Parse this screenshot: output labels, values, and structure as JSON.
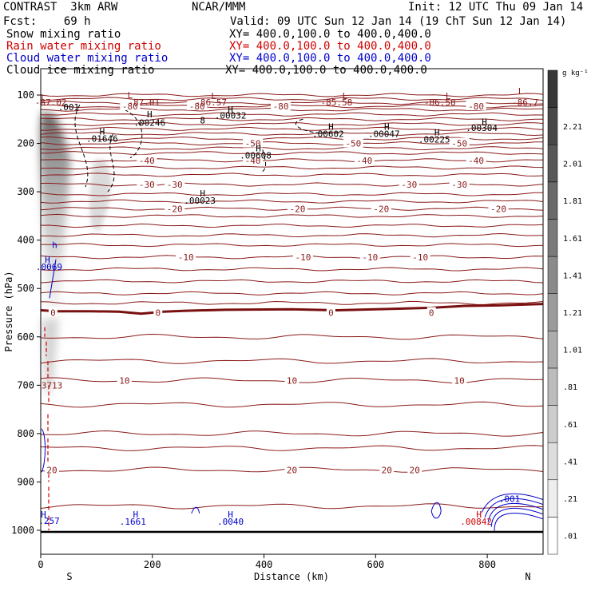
{
  "header": {
    "model": "CONTRAST  3km ARW",
    "center": "NCAR/MMM",
    "init": "Init: 12 UTC Thu 09 Jan 14",
    "fcst": "Fcst:    69 h",
    "valid": "Valid: 09 UTC Sun 12 Jan 14 (19 ChT Sun 12 Jan 14)",
    "fields": [
      {
        "name": "Snow mixing ratio",
        "xy": "XY= 400.0,100.0 to 400.0,400.0",
        "color": "#000000"
      },
      {
        "name": "Rain water mixing ratio",
        "xy": "XY= 400.0,100.0 to 400.0,400.0",
        "color": "#d00000"
      },
      {
        "name": "Cloud water mixing ratio",
        "xy": "XY= 400.0,100.0 to 400.0,400.0",
        "color": "#0000cc"
      },
      {
        "name": "Cloud ice mixing ratio",
        "xy": "XY= 400.0,100.0 to 400.0,400.0",
        "color": "#000000"
      }
    ]
  },
  "chart_data": {
    "type": "cross-section",
    "xlabel": "Distance (km)",
    "ylabel": "Pressure (hPa)",
    "xlim": [
      0,
      900
    ],
    "ylim": [
      1000,
      60
    ],
    "xticks": [
      0,
      200,
      400,
      600,
      800
    ],
    "yticks": [
      100,
      200,
      300,
      400,
      500,
      600,
      700,
      800,
      900,
      1000
    ],
    "x_end_labels": [
      "S",
      "N"
    ],
    "colorbar": {
      "unit": "g kg⁻¹",
      "levels": [
        ".01",
        ".21",
        ".41",
        ".61",
        ".81",
        "1.01",
        "1.21",
        "1.41",
        "1.61",
        "1.81",
        "2.01",
        "2.21"
      ]
    },
    "temperature_contours": [
      {
        "value": -80,
        "p": 123,
        "labels": [
          {
            "text": "-80",
            "x": 160
          },
          {
            "text": "-80",
            "x": 280
          },
          {
            "text": "-80",
            "x": 430
          },
          {
            "text": "-80",
            "x": 780
          }
        ]
      },
      {
        "value": -50,
        "p": 200,
        "labels": [
          {
            "text": "-50",
            "x": 380
          },
          {
            "text": "-50",
            "x": 560
          },
          {
            "text": "-50",
            "x": 750
          }
        ]
      },
      {
        "value": -40,
        "p": 235,
        "labels": [
          {
            "text": "-40",
            "x": 190
          },
          {
            "text": "-40",
            "x": 380
          },
          {
            "text": "-40",
            "x": 580
          },
          {
            "text": "-40",
            "x": 780
          }
        ]
      },
      {
        "value": -30,
        "p": 285,
        "labels": [
          {
            "text": "-30",
            "x": 190
          },
          {
            "text": "-30",
            "x": 240
          },
          {
            "text": "-30",
            "x": 660
          },
          {
            "text": "-30",
            "x": 750
          }
        ]
      },
      {
        "value": -20,
        "p": 335,
        "labels": [
          {
            "text": "-20",
            "x": 240
          },
          {
            "text": "-20",
            "x": 460
          },
          {
            "text": "-20",
            "x": 610
          },
          {
            "text": "-20",
            "x": 820
          }
        ]
      },
      {
        "value": -10,
        "p": 435,
        "labels": [
          {
            "text": "-10",
            "x": 260
          },
          {
            "text": "-10",
            "x": 470
          },
          {
            "text": "-10",
            "x": 590
          },
          {
            "text": "-10",
            "x": 680
          }
        ]
      },
      {
        "value": 0,
        "p": 550,
        "labels": [
          {
            "text": "0",
            "x": 22
          },
          {
            "text": "0",
            "x": 210
          },
          {
            "text": "0",
            "x": 520
          },
          {
            "text": "0",
            "x": 700
          }
        ]
      },
      {
        "value": 10,
        "p": 690,
        "labels": [
          {
            "text": "10",
            "x": 150
          },
          {
            "text": "10",
            "x": 450
          },
          {
            "text": "10",
            "x": 750
          }
        ]
      },
      {
        "value": 20,
        "p": 875,
        "labels": [
          {
            "text": "20",
            "x": 20
          },
          {
            "text": "20",
            "x": 450
          },
          {
            "text": "20",
            "x": 620
          },
          {
            "text": "20",
            "x": 670
          }
        ]
      }
    ],
    "contour_extra_labels": [
      {
        "text": "-87.02",
        "x": 18,
        "p": 115
      },
      {
        "text": "-87.01",
        "x": 185,
        "p": 115
      },
      {
        "text": "-86.57",
        "x": 305,
        "p": 115
      },
      {
        "text": "-85.58",
        "x": 530,
        "p": 115
      },
      {
        "text": "-86.58",
        "x": 715,
        "p": 115
      },
      {
        "text": "-86.7",
        "x": 868,
        "p": 115
      },
      {
        "text": ".001",
        "x": 50,
        "p": 125
      },
      {
        "text": ".00246",
        "x": 195,
        "p": 157
      },
      {
        "text": ".00032",
        "x": 340,
        "p": 142
      },
      {
        "text": ".01646",
        "x": 110,
        "p": 190
      },
      {
        "text": ".00602",
        "x": 515,
        "p": 180
      },
      {
        "text": ".00047",
        "x": 615,
        "p": 180
      },
      {
        "text": ".00225",
        "x": 705,
        "p": 192
      },
      {
        "text": ".00304",
        "x": 790,
        "p": 168
      },
      {
        "text": ".00608",
        "x": 385,
        "p": 225
      },
      {
        "text": ".00023",
        "x": 285,
        "p": 318
      },
      {
        "text": "8",
        "x": 290,
        "p": 152
      },
      {
        "text": "3713",
        "x": 20,
        "p": 700
      }
    ],
    "blue_labels": [
      {
        "text": ".0069",
        "x": 15,
        "p": 455
      },
      {
        "text": ".257",
        "x": 15,
        "p": 980
      },
      {
        "text": ".1661",
        "x": 165,
        "p": 982
      },
      {
        "text": ".0040",
        "x": 340,
        "p": 982
      },
      {
        "text": ".001",
        "x": 840,
        "p": 935
      },
      {
        "text": ".00842",
        "x": 780,
        "p": 982
      }
    ],
    "hl_markers": [
      {
        "text": "L",
        "x": 5,
        "p": 105,
        "color": "#8b1a1a"
      },
      {
        "text": "L",
        "x": 160,
        "p": 100,
        "color": "#8b1a1a"
      },
      {
        "text": "L",
        "x": 310,
        "p": 102,
        "color": "#8b1a1a"
      },
      {
        "text": "L",
        "x": 545,
        "p": 102,
        "color": "#8b1a1a"
      },
      {
        "text": "L",
        "x": 730,
        "p": 102,
        "color": "#8b1a1a"
      },
      {
        "text": "L",
        "x": 860,
        "p": 92,
        "color": "#8b1a1a"
      },
      {
        "text": "H",
        "x": 195,
        "p": 140,
        "color": "#000000"
      },
      {
        "text": "H",
        "x": 340,
        "p": 130,
        "color": "#000000"
      },
      {
        "text": "H",
        "x": 110,
        "p": 175,
        "color": "#000000"
      },
      {
        "text": "H",
        "x": 520,
        "p": 165,
        "color": "#000000"
      },
      {
        "text": "H",
        "x": 620,
        "p": 165,
        "color": "#000000"
      },
      {
        "text": "H",
        "x": 710,
        "p": 177,
        "color": "#000000"
      },
      {
        "text": "H",
        "x": 795,
        "p": 155,
        "color": "#000000"
      },
      {
        "text": "H",
        "x": 390,
        "p": 210,
        "color": "#000000"
      },
      {
        "text": "H",
        "x": 290,
        "p": 303,
        "color": "#000000"
      },
      {
        "text": "H",
        "x": 12,
        "p": 440,
        "color": "#0000cc"
      },
      {
        "text": "h",
        "x": 25,
        "p": 410,
        "color": "#0000cc"
      },
      {
        "text": "H",
        "x": 170,
        "p": 967,
        "color": "#0000cc"
      },
      {
        "text": "H",
        "x": 340,
        "p": 967,
        "color": "#0000cc"
      },
      {
        "text": "H",
        "x": 785,
        "p": 967,
        "color": "#d00000"
      },
      {
        "text": "H",
        "x": 5,
        "p": 967,
        "color": "#0000cc"
      }
    ]
  }
}
